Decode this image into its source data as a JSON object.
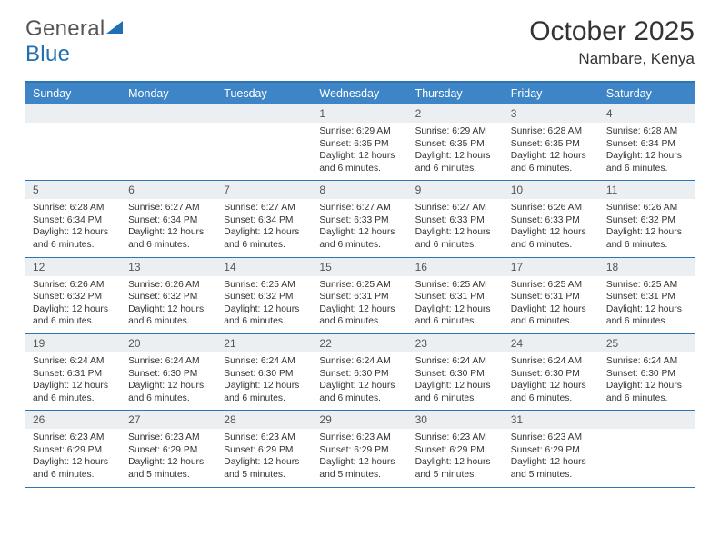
{
  "brand": {
    "name1": "General",
    "name2": "Blue"
  },
  "title": {
    "month": "October 2025",
    "location": "Nambare, Kenya"
  },
  "colors": {
    "accent": "#2e75b6",
    "header_bg": "#3d85c6",
    "daynum_bg": "#eceff1"
  },
  "day_labels": [
    "Sunday",
    "Monday",
    "Tuesday",
    "Wednesday",
    "Thursday",
    "Friday",
    "Saturday"
  ],
  "weeks": [
    [
      {
        "n": "",
        "sr": "",
        "ss": "",
        "dl": ""
      },
      {
        "n": "",
        "sr": "",
        "ss": "",
        "dl": ""
      },
      {
        "n": "",
        "sr": "",
        "ss": "",
        "dl": ""
      },
      {
        "n": "1",
        "sr": "Sunrise: 6:29 AM",
        "ss": "Sunset: 6:35 PM",
        "dl": "Daylight: 12 hours and 6 minutes."
      },
      {
        "n": "2",
        "sr": "Sunrise: 6:29 AM",
        "ss": "Sunset: 6:35 PM",
        "dl": "Daylight: 12 hours and 6 minutes."
      },
      {
        "n": "3",
        "sr": "Sunrise: 6:28 AM",
        "ss": "Sunset: 6:35 PM",
        "dl": "Daylight: 12 hours and 6 minutes."
      },
      {
        "n": "4",
        "sr": "Sunrise: 6:28 AM",
        "ss": "Sunset: 6:34 PM",
        "dl": "Daylight: 12 hours and 6 minutes."
      }
    ],
    [
      {
        "n": "5",
        "sr": "Sunrise: 6:28 AM",
        "ss": "Sunset: 6:34 PM",
        "dl": "Daylight: 12 hours and 6 minutes."
      },
      {
        "n": "6",
        "sr": "Sunrise: 6:27 AM",
        "ss": "Sunset: 6:34 PM",
        "dl": "Daylight: 12 hours and 6 minutes."
      },
      {
        "n": "7",
        "sr": "Sunrise: 6:27 AM",
        "ss": "Sunset: 6:34 PM",
        "dl": "Daylight: 12 hours and 6 minutes."
      },
      {
        "n": "8",
        "sr": "Sunrise: 6:27 AM",
        "ss": "Sunset: 6:33 PM",
        "dl": "Daylight: 12 hours and 6 minutes."
      },
      {
        "n": "9",
        "sr": "Sunrise: 6:27 AM",
        "ss": "Sunset: 6:33 PM",
        "dl": "Daylight: 12 hours and 6 minutes."
      },
      {
        "n": "10",
        "sr": "Sunrise: 6:26 AM",
        "ss": "Sunset: 6:33 PM",
        "dl": "Daylight: 12 hours and 6 minutes."
      },
      {
        "n": "11",
        "sr": "Sunrise: 6:26 AM",
        "ss": "Sunset: 6:32 PM",
        "dl": "Daylight: 12 hours and 6 minutes."
      }
    ],
    [
      {
        "n": "12",
        "sr": "Sunrise: 6:26 AM",
        "ss": "Sunset: 6:32 PM",
        "dl": "Daylight: 12 hours and 6 minutes."
      },
      {
        "n": "13",
        "sr": "Sunrise: 6:26 AM",
        "ss": "Sunset: 6:32 PM",
        "dl": "Daylight: 12 hours and 6 minutes."
      },
      {
        "n": "14",
        "sr": "Sunrise: 6:25 AM",
        "ss": "Sunset: 6:32 PM",
        "dl": "Daylight: 12 hours and 6 minutes."
      },
      {
        "n": "15",
        "sr": "Sunrise: 6:25 AM",
        "ss": "Sunset: 6:31 PM",
        "dl": "Daylight: 12 hours and 6 minutes."
      },
      {
        "n": "16",
        "sr": "Sunrise: 6:25 AM",
        "ss": "Sunset: 6:31 PM",
        "dl": "Daylight: 12 hours and 6 minutes."
      },
      {
        "n": "17",
        "sr": "Sunrise: 6:25 AM",
        "ss": "Sunset: 6:31 PM",
        "dl": "Daylight: 12 hours and 6 minutes."
      },
      {
        "n": "18",
        "sr": "Sunrise: 6:25 AM",
        "ss": "Sunset: 6:31 PM",
        "dl": "Daylight: 12 hours and 6 minutes."
      }
    ],
    [
      {
        "n": "19",
        "sr": "Sunrise: 6:24 AM",
        "ss": "Sunset: 6:31 PM",
        "dl": "Daylight: 12 hours and 6 minutes."
      },
      {
        "n": "20",
        "sr": "Sunrise: 6:24 AM",
        "ss": "Sunset: 6:30 PM",
        "dl": "Daylight: 12 hours and 6 minutes."
      },
      {
        "n": "21",
        "sr": "Sunrise: 6:24 AM",
        "ss": "Sunset: 6:30 PM",
        "dl": "Daylight: 12 hours and 6 minutes."
      },
      {
        "n": "22",
        "sr": "Sunrise: 6:24 AM",
        "ss": "Sunset: 6:30 PM",
        "dl": "Daylight: 12 hours and 6 minutes."
      },
      {
        "n": "23",
        "sr": "Sunrise: 6:24 AM",
        "ss": "Sunset: 6:30 PM",
        "dl": "Daylight: 12 hours and 6 minutes."
      },
      {
        "n": "24",
        "sr": "Sunrise: 6:24 AM",
        "ss": "Sunset: 6:30 PM",
        "dl": "Daylight: 12 hours and 6 minutes."
      },
      {
        "n": "25",
        "sr": "Sunrise: 6:24 AM",
        "ss": "Sunset: 6:30 PM",
        "dl": "Daylight: 12 hours and 6 minutes."
      }
    ],
    [
      {
        "n": "26",
        "sr": "Sunrise: 6:23 AM",
        "ss": "Sunset: 6:29 PM",
        "dl": "Daylight: 12 hours and 6 minutes."
      },
      {
        "n": "27",
        "sr": "Sunrise: 6:23 AM",
        "ss": "Sunset: 6:29 PM",
        "dl": "Daylight: 12 hours and 5 minutes."
      },
      {
        "n": "28",
        "sr": "Sunrise: 6:23 AM",
        "ss": "Sunset: 6:29 PM",
        "dl": "Daylight: 12 hours and 5 minutes."
      },
      {
        "n": "29",
        "sr": "Sunrise: 6:23 AM",
        "ss": "Sunset: 6:29 PM",
        "dl": "Daylight: 12 hours and 5 minutes."
      },
      {
        "n": "30",
        "sr": "Sunrise: 6:23 AM",
        "ss": "Sunset: 6:29 PM",
        "dl": "Daylight: 12 hours and 5 minutes."
      },
      {
        "n": "31",
        "sr": "Sunrise: 6:23 AM",
        "ss": "Sunset: 6:29 PM",
        "dl": "Daylight: 12 hours and 5 minutes."
      },
      {
        "n": "",
        "sr": "",
        "ss": "",
        "dl": ""
      }
    ]
  ]
}
